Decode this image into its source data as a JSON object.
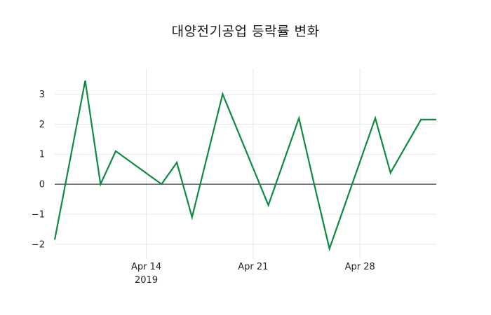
{
  "title": "대양전기공업 등락률 변화",
  "chart_data": {
    "type": "line",
    "title": "대양전기공업 등락률 변화",
    "xlabel": "",
    "ylabel": "",
    "legend": "none",
    "grid": "on-light",
    "zero_line": true,
    "xlim_days": [
      0,
      25
    ],
    "ylim": [
      -2.4,
      3.85
    ],
    "series": [
      {
        "name": "등락률",
        "color": "#0e8a42",
        "dates": [
          "2019-04-08",
          "2019-04-09",
          "2019-04-10",
          "2019-04-11",
          "2019-04-12",
          "2019-04-15",
          "2019-04-16",
          "2019-04-17",
          "2019-04-18",
          "2019-04-19",
          "2019-04-22",
          "2019-04-23",
          "2019-04-24",
          "2019-04-25",
          "2019-04-26",
          "2019-04-29",
          "2019-04-30",
          "2019-05-02",
          "2019-05-03"
        ],
        "day_offsets": [
          0,
          1,
          2,
          3,
          4,
          7,
          8,
          9,
          10,
          11,
          14,
          15,
          16,
          17,
          18,
          21,
          22,
          24,
          25
        ],
        "values": [
          -1.85,
          0.8,
          3.45,
          0.0,
          1.1,
          0.0,
          0.72,
          -1.1,
          0.95,
          3.0,
          -0.7,
          0.75,
          2.2,
          0.0,
          -2.15,
          2.2,
          0.38,
          2.15,
          2.15
        ]
      }
    ],
    "x_ticks": [
      {
        "label": "Apr 14",
        "sublabel": "2019",
        "day_offset": 6
      },
      {
        "label": "Apr 21",
        "sublabel": "",
        "day_offset": 13
      },
      {
        "label": "Apr 28",
        "sublabel": "",
        "day_offset": 20
      }
    ],
    "y_ticks": [
      {
        "value": 3,
        "label": "3"
      },
      {
        "value": 2,
        "label": "2"
      },
      {
        "value": 1,
        "label": "1"
      },
      {
        "value": 0,
        "label": "0"
      },
      {
        "value": -1,
        "label": "−1"
      },
      {
        "value": -2,
        "label": "−2"
      }
    ]
  },
  "colors": {
    "background": "#ffffff",
    "line": "#0e8a42",
    "gridline": "#e7e7e7",
    "zero_line": "#3c3c3c",
    "tick_text": "#262626",
    "title_text": "#1a1a1a"
  }
}
